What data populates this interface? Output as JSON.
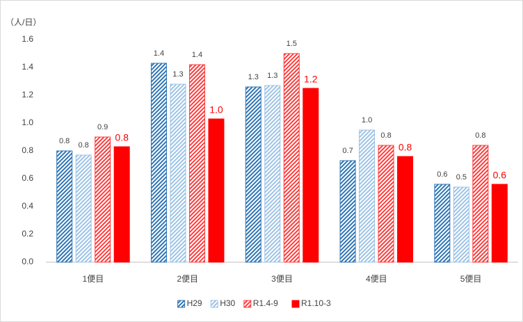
{
  "chart_data": {
    "type": "bar",
    "y_label": "（人/日）",
    "categories": [
      "1便目",
      "2便目",
      "3便目",
      "4便目",
      "5便目"
    ],
    "series": [
      {
        "name": "H29",
        "color": "#2e75b6",
        "pattern": "hatch",
        "label_color": "#404040",
        "values": [
          0.8,
          1.43,
          1.26,
          0.73,
          0.56
        ],
        "value_labels": [
          "0.8",
          "1.4",
          "1.3",
          "0.7",
          "0.6"
        ]
      },
      {
        "name": "H30",
        "color": "#9dc3e6",
        "pattern": "hatch",
        "label_color": "#404040",
        "values": [
          0.77,
          1.28,
          1.27,
          0.95,
          0.54
        ],
        "value_labels": [
          "0.8",
          "1.3",
          "1.3",
          "1.0",
          "0.5"
        ]
      },
      {
        "name": "R1.4-9",
        "color": "#ff3b3b",
        "pattern": "hatch",
        "label_color": "#404040",
        "values": [
          0.9,
          1.42,
          1.5,
          0.84,
          0.84
        ],
        "value_labels": [
          "0.9",
          "1.4",
          "1.5",
          "0.8",
          "0.8"
        ]
      },
      {
        "name": "R1.10-3",
        "color": "#ff0000",
        "pattern": "solid",
        "label_color": "#ff0000",
        "values": [
          0.83,
          1.03,
          1.25,
          0.76,
          0.56
        ],
        "value_labels": [
          "0.8",
          "1.0",
          "1.2",
          "0.8",
          "0.6"
        ]
      }
    ],
    "ylim": [
      0,
      1.6
    ],
    "yticks": [
      {
        "value": 0,
        "label": "0.0"
      },
      0.2,
      0.4,
      0.6,
      0.8,
      {
        "value": 1,
        "label": "1.0"
      },
      1.2,
      1.4,
      1.6
    ],
    "grid": false,
    "legend": "bottom"
  }
}
